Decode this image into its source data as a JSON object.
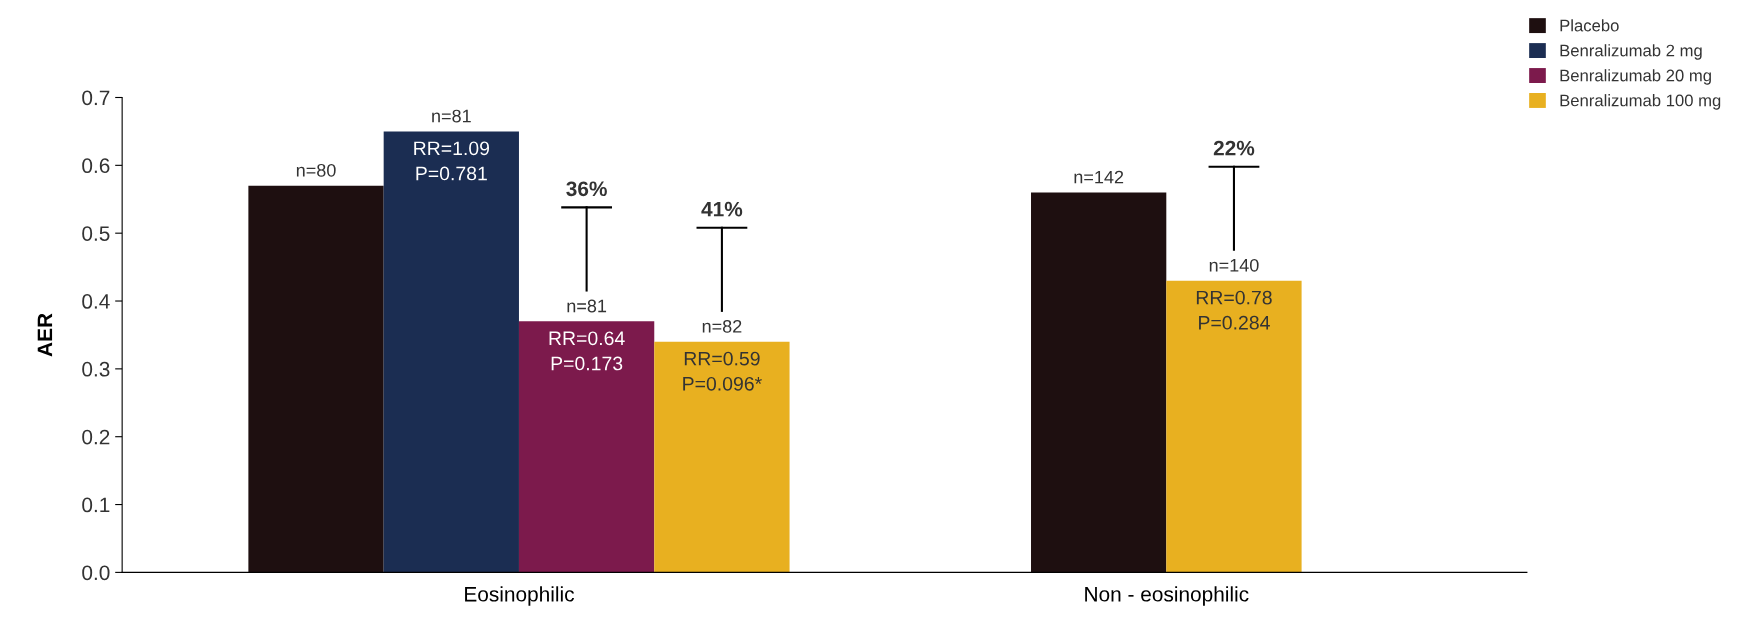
{
  "chart_data": {
    "type": "bar",
    "ylabel": "AER",
    "categories": [
      "Eosinophilic",
      "Non - eosinophilic"
    ],
    "series": [
      {
        "name": "Placebo",
        "color": "#1e0f10",
        "values": [
          0.57,
          0.56
        ]
      },
      {
        "name": "Benralizumab 2 mg",
        "color": "#1b2d52",
        "values": [
          0.65,
          null
        ]
      },
      {
        "name": "Benralizumab 20 mg",
        "color": "#7c1a4c",
        "values": [
          0.37,
          null
        ]
      },
      {
        "name": "Benralizumab 100 mg",
        "color": "#e8b020",
        "values": [
          0.34,
          0.43
        ]
      }
    ],
    "annotations": [
      "n=80",
      "n=81",
      "RR=1.09\nP=0.781",
      "n=81",
      "RR=0.64\nP=0.173",
      "36%",
      "n=82",
      "RR=0.59\nP=0.096*",
      "41%",
      "n=142",
      "n=140",
      "RR=0.78\nP=0.284",
      "22%"
    ],
    "ylim": [
      0,
      0.7
    ],
    "yticks": [
      {
        "value": 0,
        "label": "0.0"
      },
      0.1,
      0.2,
      0.3,
      0.4,
      0.5,
      0.6,
      0.7
    ],
    "grid": false,
    "legend": "top right"
  }
}
